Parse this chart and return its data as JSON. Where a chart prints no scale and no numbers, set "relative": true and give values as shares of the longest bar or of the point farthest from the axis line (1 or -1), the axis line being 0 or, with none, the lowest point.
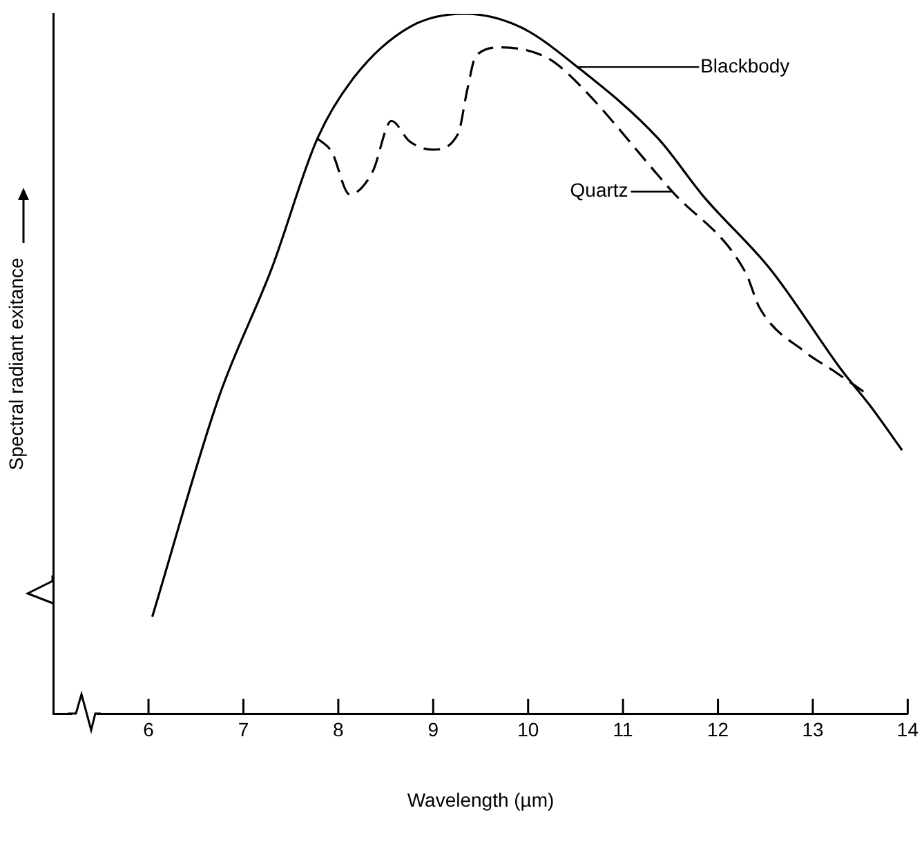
{
  "chart_data": {
    "type": "line",
    "xlabel": "Wavelength (µm)",
    "ylabel": "Spectral radiant exitance",
    "relative": true,
    "xlim": [
      5,
      14
    ],
    "xticks": [
      6,
      7,
      8,
      9,
      10,
      11,
      12,
      13,
      14
    ],
    "grid": false,
    "legend": false,
    "marker": "none",
    "series": [
      {
        "color": "#000000",
        "line_style": "solid",
        "x": [
          6.04,
          6.74,
          7.3,
          7.78,
          8.17,
          8.75,
          9.33,
          9.92,
          10.52,
          11.37,
          11.85,
          12.56,
          13.31,
          13.6,
          13.94
        ],
        "values": [
          0.139,
          0.452,
          0.637,
          0.822,
          0.91,
          0.981,
          1,
          0.981,
          0.924,
          0.822,
          0.739,
          0.634,
          0.49,
          0.441,
          0.377
        ]
      },
      {
        "color": "#000000",
        "line_style": "dashed",
        "x": [
          7.78,
          7.93,
          8.12,
          8.36,
          8.56,
          8.75,
          8.99,
          9.26,
          9.36,
          9.45,
          9.72,
          10.16,
          10.4,
          11.52,
          12.29,
          12.44,
          12.92,
          13.21,
          13.55
        ],
        "values": [
          0.822,
          0.803,
          0.742,
          0.774,
          0.847,
          0.818,
          0.806,
          0.828,
          0.892,
          0.94,
          0.952,
          0.94,
          0.917,
          0.746,
          0.631,
          0.58,
          0.517,
          0.491,
          0.459
        ]
      }
    ],
    "annotations": [
      {
        "text": "Blackbody",
        "x": 10.52,
        "y": 0.924
      },
      {
        "text": "Quartz",
        "x": 11.52,
        "y": 0.746
      }
    ]
  }
}
